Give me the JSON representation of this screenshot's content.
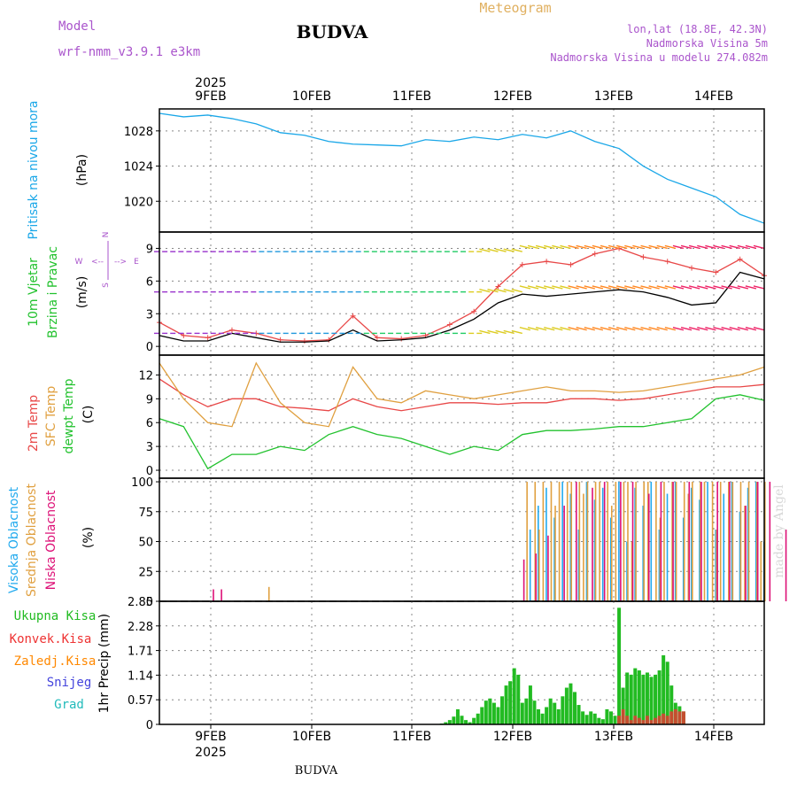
{
  "header": {
    "title": "BUDVA",
    "subtitle": "Meteogram",
    "model_label": "Model",
    "model_name": "wrf-nmm_v3.9.1 e3km",
    "lonlat": "lon,lat (18.8E, 42.3N)",
    "elevation": "Nadmorska Visina 5m",
    "model_elevation": "Nadmorska Visina u modelu 274.082m",
    "footer": "BUDVA",
    "watermark": "made by Angel"
  },
  "colors": {
    "pressure": "#1aa7e8",
    "temp2m": "#e84848",
    "sfc": "#e0a040",
    "dewpt": "#22c22e",
    "high_cloud": "#22aaee",
    "mid_cloud": "#e0a040",
    "low_cloud": "#dd1177",
    "precip_total": "#22bb22",
    "precip_conv": "#ee3333",
    "precip_frozen": "#ff8800",
    "snow": "#4444dd",
    "hail": "#22bbbb",
    "model_title": "#aa55cc"
  },
  "axis": {
    "year_top": "2025",
    "year_bottom": "2025",
    "days": [
      "9FEB",
      "10FEB",
      "11FEB",
      "12FEB",
      "13FEB",
      "14FEB"
    ]
  },
  "chart_data": [
    {
      "type": "line",
      "id": "pressure",
      "ylabel": "Pritisak na nivou mora",
      "unit": "(hPa)",
      "ylim": [
        1016.5,
        1030.5
      ],
      "yticks": [
        "1028",
        "1024",
        "1020"
      ],
      "yticks_values": [
        1028,
        1024,
        1020
      ],
      "x_hours": [
        0,
        6,
        12,
        18,
        24,
        30,
        36,
        42,
        48,
        54,
        60,
        66,
        72,
        78,
        84,
        90,
        96,
        102,
        108,
        114,
        120,
        126,
        132,
        138,
        144,
        150
      ],
      "series": [
        {
          "name": "Pritisak",
          "values": [
            1030,
            1029.6,
            1029.8,
            1029.4,
            1028.8,
            1027.8,
            1027.5,
            1026.8,
            1026.5,
            1026.4,
            1026.3,
            1027.0,
            1026.8,
            1027.3,
            1027.0,
            1027.6,
            1027.2,
            1028.0,
            1026.8,
            1026.0,
            1024.0,
            1022.5,
            1021.5,
            1020.5,
            1018.5,
            1017.5
          ]
        }
      ]
    },
    {
      "type": "line",
      "id": "wind",
      "ylabel": "10m Vjetar Brzina i Pravac",
      "unit": "(m/s)",
      "compass": {
        "n": "N",
        "s": "S",
        "w": "W",
        "e": "E",
        "arrow_left": "<--",
        "arrow_right": "-->"
      },
      "ylim": [
        -0.8,
        10.5
      ],
      "yticks": [
        "9",
        "6",
        "3",
        "0"
      ],
      "yticks_values": [
        9,
        6,
        3,
        0
      ],
      "x_hours": [
        0,
        6,
        12,
        18,
        24,
        30,
        36,
        42,
        48,
        54,
        60,
        66,
        72,
        78,
        84,
        90,
        96,
        102,
        108,
        114,
        120,
        126,
        132,
        138,
        144,
        150
      ],
      "series": [
        {
          "name": "gust",
          "values": [
            2.2,
            1.0,
            0.8,
            1.5,
            1.2,
            0.6,
            0.5,
            0.6,
            2.8,
            0.8,
            0.7,
            1.0,
            2.0,
            3.2,
            5.5,
            7.5,
            7.8,
            7.5,
            8.5,
            9.0,
            8.2,
            7.8,
            7.2,
            6.8,
            8.0,
            6.5
          ]
        },
        {
          "name": "speed",
          "values": [
            1.0,
            0.5,
            0.5,
            1.2,
            0.8,
            0.4,
            0.4,
            0.5,
            1.5,
            0.5,
            0.6,
            0.8,
            1.5,
            2.5,
            4.0,
            4.8,
            4.6,
            4.8,
            5.0,
            5.2,
            5.0,
            4.5,
            3.8,
            4.0,
            6.8,
            6.2
          ]
        }
      ]
    },
    {
      "type": "line",
      "id": "temperature",
      "ylabel": [
        "2m Temp",
        "SFC Temp",
        "dewpt Temp"
      ],
      "unit": "(C)",
      "ylim": [
        -1.0,
        14.5
      ],
      "yticks": [
        "12",
        "9",
        "6",
        "3",
        "0"
      ],
      "yticks_values": [
        12,
        9,
        6,
        3,
        0
      ],
      "x_hours": [
        0,
        6,
        12,
        18,
        24,
        30,
        36,
        42,
        48,
        54,
        60,
        66,
        72,
        78,
        84,
        90,
        96,
        102,
        108,
        114,
        120,
        126,
        132,
        138,
        144,
        150
      ],
      "series": [
        {
          "name": "2m Temp",
          "values": [
            11.5,
            9.5,
            8.0,
            9.0,
            9.0,
            8.0,
            7.8,
            7.5,
            9.0,
            8.0,
            7.5,
            8.0,
            8.5,
            8.5,
            8.3,
            8.5,
            8.5,
            9.0,
            9.0,
            8.8,
            9.0,
            9.5,
            10.0,
            10.5,
            10.5,
            10.8
          ]
        },
        {
          "name": "SFC Temp",
          "values": [
            13.5,
            9.0,
            6.0,
            5.5,
            13.5,
            8.5,
            6.0,
            5.5,
            13.0,
            9.0,
            8.5,
            10.0,
            9.5,
            9.0,
            9.5,
            10.0,
            10.5,
            10.0,
            10.0,
            9.8,
            10.0,
            10.5,
            11.0,
            11.5,
            12.0,
            13.0
          ]
        },
        {
          "name": "dewpt Temp",
          "values": [
            6.5,
            5.5,
            0.2,
            2.0,
            2.0,
            3.0,
            2.5,
            4.5,
            5.5,
            4.5,
            4.0,
            3.0,
            2.0,
            3.0,
            2.5,
            4.5,
            5.0,
            5.0,
            5.2,
            5.5,
            5.5,
            6.0,
            6.5,
            9.0,
            9.5,
            8.8
          ]
        }
      ]
    },
    {
      "type": "bar",
      "id": "cloud",
      "ylabel": [
        "Visoka Oblacnost",
        "Srednja Oblacnost",
        "Niska Oblacnost"
      ],
      "unit": "(%)",
      "ylim": [
        0,
        103
      ],
      "yticks": [
        "100",
        "75",
        "50",
        "25",
        "0"
      ],
      "yticks_values": [
        100,
        75,
        50,
        25,
        0
      ],
      "x_hours_start": 1,
      "x_hours_step": 1,
      "series": [
        {
          "name": "Visoka Oblacnost",
          "values": [
            0,
            0,
            0,
            0,
            0,
            0,
            0,
            0,
            0,
            0,
            0,
            0,
            0,
            0,
            0,
            0,
            0,
            0,
            0,
            0,
            0,
            0,
            0,
            0,
            0,
            0,
            0,
            0,
            0,
            0,
            0,
            0,
            0,
            0,
            0,
            0,
            0,
            0,
            0,
            0,
            0,
            0,
            0,
            0,
            0,
            0,
            0,
            0,
            0,
            0,
            0,
            0,
            0,
            0,
            0,
            0,
            0,
            0,
            0,
            0,
            0,
            0,
            0,
            0,
            0,
            0,
            0,
            0,
            0,
            0,
            0,
            0,
            0,
            0,
            0,
            0,
            0,
            0,
            0,
            0,
            0,
            0,
            0,
            0,
            0,
            0,
            0,
            0,
            0,
            0,
            0,
            60,
            0,
            80,
            0,
            95,
            0,
            70,
            0,
            100,
            0,
            90,
            0,
            60,
            0,
            100,
            0,
            85,
            0,
            95,
            0,
            70,
            0,
            100,
            0,
            50,
            0,
            95,
            0,
            80,
            0,
            100,
            0,
            60,
            0,
            90,
            0,
            100,
            0,
            70,
            0,
            95,
            0,
            85,
            0,
            100,
            0,
            60,
            0,
            90,
            0,
            100,
            0,
            75,
            0,
            95,
            0,
            100,
            0,
            50
          ]
        },
        {
          "name": "Srednja Oblacnost",
          "values": [
            0,
            0,
            0,
            0,
            0,
            0,
            0,
            0,
            0,
            0,
            0,
            0,
            0,
            0,
            0,
            0,
            0,
            0,
            0,
            0,
            0,
            0,
            0,
            0,
            0,
            0,
            12,
            0,
            0,
            0,
            0,
            0,
            0,
            0,
            0,
            0,
            0,
            0,
            0,
            0,
            0,
            0,
            0,
            0,
            0,
            0,
            0,
            0,
            0,
            0,
            0,
            0,
            0,
            0,
            0,
            0,
            0,
            0,
            0,
            0,
            0,
            0,
            0,
            0,
            0,
            0,
            0,
            0,
            0,
            0,
            0,
            0,
            0,
            0,
            0,
            0,
            0,
            0,
            0,
            0,
            0,
            0,
            0,
            0,
            0,
            0,
            0,
            0,
            0,
            0,
            100,
            0,
            100,
            60,
            100,
            0,
            100,
            80,
            100,
            0,
            100,
            100,
            0,
            100,
            90,
            100,
            0,
            100,
            100,
            0,
            100,
            80,
            100,
            0,
            100,
            100,
            50,
            100,
            0,
            100,
            100,
            0,
            100,
            70,
            100,
            0,
            100,
            100,
            0,
            100,
            90,
            100,
            0,
            100,
            100,
            0,
            100,
            60,
            100,
            0,
            100,
            100,
            0,
            100,
            80,
            100,
            0,
            100,
            50,
            100
          ]
        },
        {
          "name": "Niska Oblacnost",
          "values": [
            0,
            0,
            0,
            0,
            0,
            0,
            0,
            0,
            0,
            0,
            0,
            0,
            10,
            0,
            10,
            0,
            0,
            0,
            0,
            0,
            0,
            0,
            0,
            0,
            0,
            0,
            0,
            0,
            0,
            0,
            0,
            0,
            0,
            0,
            0,
            0,
            0,
            0,
            0,
            0,
            0,
            0,
            0,
            0,
            0,
            0,
            0,
            0,
            0,
            0,
            0,
            0,
            0,
            0,
            0,
            0,
            0,
            0,
            0,
            0,
            0,
            0,
            0,
            0,
            0,
            0,
            0,
            0,
            0,
            0,
            0,
            0,
            0,
            0,
            0,
            0,
            0,
            0,
            0,
            0,
            0,
            0,
            0,
            0,
            0,
            0,
            0,
            0,
            0,
            35,
            0,
            0,
            40,
            0,
            0,
            55,
            0,
            0,
            0,
            80,
            0,
            0,
            100,
            0,
            0,
            0,
            95,
            0,
            0,
            100,
            0,
            0,
            0,
            100,
            0,
            0,
            100,
            0,
            0,
            0,
            90,
            0,
            0,
            100,
            0,
            0,
            100,
            0,
            0,
            0,
            100,
            0,
            0,
            100,
            0,
            0,
            0,
            100,
            0,
            0,
            100,
            0,
            0,
            0,
            80,
            0,
            0,
            100,
            0,
            0,
            100,
            0,
            0,
            0,
            60,
            0
          ]
        }
      ]
    },
    {
      "type": "bar",
      "id": "precip",
      "ylabel": "1hr Precip",
      "unit": "(mm)",
      "legend": [
        "Ukupna Kisa",
        "Konvek.Kisa",
        "Zaledj.Kisa",
        "Snijeg",
        "Grad"
      ],
      "ylim": [
        0,
        2.85
      ],
      "yticks": [
        "2.85",
        "2.28",
        "1.71",
        "1.14",
        "0.57",
        "0"
      ],
      "yticks_values": [
        2.85,
        2.28,
        1.71,
        1.14,
        0.57,
        0
      ],
      "x_hours_start": 70,
      "x_hours_step": 1,
      "series": [
        {
          "name": "Ukupna Kisa",
          "values": [
            0.02,
            0.05,
            0.1,
            0.18,
            0.35,
            0.2,
            0.1,
            0.05,
            0.15,
            0.25,
            0.4,
            0.55,
            0.6,
            0.5,
            0.4,
            0.65,
            0.9,
            1.0,
            1.3,
            1.15,
            0.5,
            0.6,
            0.9,
            0.55,
            0.35,
            0.25,
            0.4,
            0.6,
            0.5,
            0.35,
            0.65,
            0.85,
            0.95,
            0.75,
            0.45,
            0.3,
            0.22,
            0.3,
            0.25,
            0.15,
            0.12,
            0.35,
            0.3,
            0.2,
            2.7,
            0.85,
            1.2,
            1.15,
            1.3,
            1.25,
            1.15,
            1.2,
            1.1,
            1.15,
            1.25,
            1.6,
            1.45,
            0.9,
            0.5,
            0.42,
            0.3
          ]
        },
        {
          "name": "Konvek.Kisa",
          "values": [
            0,
            0,
            0,
            0,
            0,
            0,
            0,
            0,
            0,
            0,
            0,
            0,
            0,
            0,
            0,
            0,
            0,
            0,
            0,
            0,
            0,
            0,
            0,
            0,
            0,
            0,
            0,
            0,
            0,
            0,
            0,
            0,
            0,
            0,
            0,
            0,
            0,
            0,
            0,
            0,
            0,
            0,
            0,
            0,
            0.2,
            0.35,
            0.2,
            0.1,
            0.2,
            0.15,
            0.1,
            0.2,
            0.1,
            0.15,
            0.2,
            0.25,
            0.2,
            0.3,
            0.35,
            0.3,
            0.3
          ]
        }
      ]
    }
  ]
}
